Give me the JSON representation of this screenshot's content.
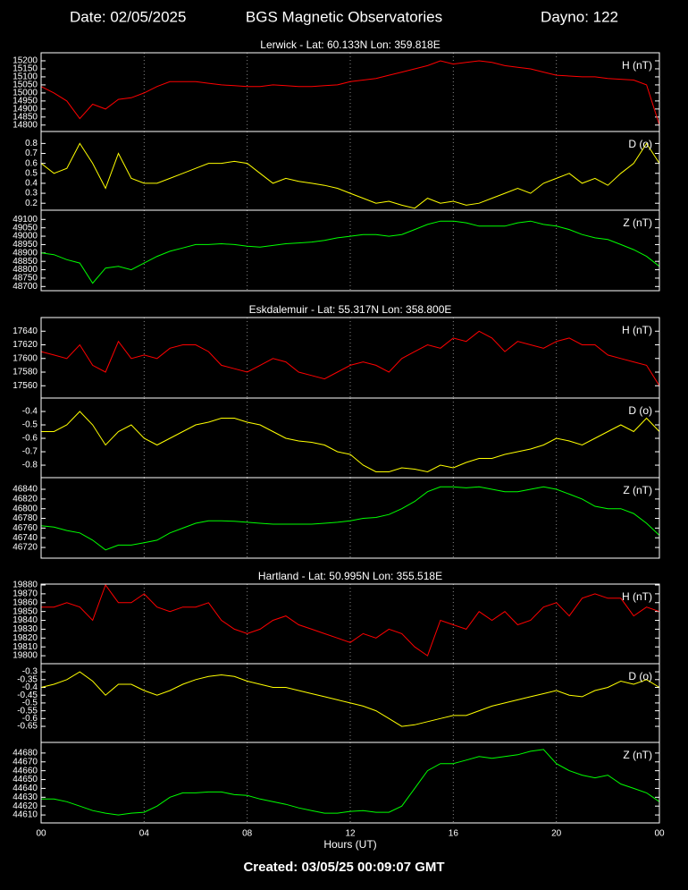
{
  "header": {
    "date": "Date: 02/05/2025",
    "title": "BGS Magnetic Observatories",
    "dayno": "Dayno: 122"
  },
  "footer": "Created: 03/05/25 00:09:07 GMT",
  "x_axis": {
    "label": "Hours (UT)",
    "xlim": [
      0,
      24
    ],
    "xticks": [
      {
        "value": 0,
        "label": "00"
      },
      {
        "value": 4,
        "label": "04"
      },
      {
        "value": 8,
        "label": "08"
      },
      12,
      16,
      20,
      {
        "value": 24,
        "label": "00"
      }
    ]
  },
  "chart_data": [
    {
      "type": "line",
      "title": "Lerwick - Lat: 60.133N Lon: 359.818E",
      "x": [
        0,
        0.5,
        1,
        1.5,
        2,
        2.5,
        3,
        3.5,
        4,
        4.5,
        5,
        5.5,
        6,
        6.5,
        7,
        7.5,
        8,
        8.5,
        9,
        9.5,
        10,
        10.5,
        11,
        11.5,
        12,
        12.5,
        13,
        13.5,
        14,
        14.5,
        15,
        15.5,
        16,
        16.5,
        17,
        17.5,
        18,
        18.5,
        19,
        19.5,
        20,
        20.5,
        21,
        21.5,
        22,
        22.5,
        23,
        23.5,
        24
      ],
      "series": [
        {
          "name": "H (nT)",
          "color": "#ff0000",
          "values": [
            15040,
            15000,
            14950,
            14840,
            14930,
            14900,
            14960,
            14970,
            15000,
            15040,
            15070,
            15070,
            15070,
            15060,
            15050,
            15045,
            15040,
            15040,
            15050,
            15045,
            15040,
            15040,
            15045,
            15050,
            15070,
            15080,
            15090,
            15110,
            15130,
            15150,
            15170,
            15200,
            15180,
            15190,
            15200,
            15190,
            15170,
            15160,
            15150,
            15130,
            15110,
            15105,
            15100,
            15100,
            15090,
            15085,
            15080,
            15050,
            14800
          ]
        }
      ],
      "ylim": [
        14760,
        15250
      ],
      "yticks": [
        14800,
        14850,
        14900,
        14950,
        15000,
        15050,
        15100,
        15150,
        15200
      ]
    },
    {
      "type": "line",
      "x": [
        0,
        0.5,
        1,
        1.5,
        2,
        2.5,
        3,
        3.5,
        4,
        4.5,
        5,
        5.5,
        6,
        6.5,
        7,
        7.5,
        8,
        8.5,
        9,
        9.5,
        10,
        10.5,
        11,
        11.5,
        12,
        12.5,
        13,
        13.5,
        14,
        14.5,
        15,
        15.5,
        16,
        16.5,
        17,
        17.5,
        18,
        18.5,
        19,
        19.5,
        20,
        20.5,
        21,
        21.5,
        22,
        22.5,
        23,
        23.5,
        24
      ],
      "series": [
        {
          "name": "D (o)",
          "color": "#ffff00",
          "values": [
            0.6,
            0.5,
            0.55,
            0.8,
            0.6,
            0.35,
            0.7,
            0.45,
            0.4,
            0.4,
            0.45,
            0.5,
            0.55,
            0.6,
            0.6,
            0.62,
            0.6,
            0.5,
            0.4,
            0.45,
            0.42,
            0.4,
            0.38,
            0.35,
            0.3,
            0.25,
            0.2,
            0.22,
            0.18,
            0.15,
            0.25,
            0.2,
            0.22,
            0.18,
            0.2,
            0.25,
            0.3,
            0.35,
            0.3,
            0.4,
            0.45,
            0.5,
            0.4,
            0.45,
            0.38,
            0.5,
            0.6,
            0.8,
            0.6
          ]
        }
      ],
      "ylim": [
        0.13,
        0.92
      ],
      "yticks": [
        0.2,
        0.3,
        0.4,
        0.5,
        0.6,
        0.7,
        0.8
      ]
    },
    {
      "type": "line",
      "x": [
        0,
        0.5,
        1,
        1.5,
        2,
        2.5,
        3,
        3.5,
        4,
        4.5,
        5,
        5.5,
        6,
        6.5,
        7,
        7.5,
        8,
        8.5,
        9,
        9.5,
        10,
        10.5,
        11,
        11.5,
        12,
        12.5,
        13,
        13.5,
        14,
        14.5,
        15,
        15.5,
        16,
        16.5,
        17,
        17.5,
        18,
        18.5,
        19,
        19.5,
        20,
        20.5,
        21,
        21.5,
        22,
        22.5,
        23,
        23.5,
        24
      ],
      "series": [
        {
          "name": "Z (nT)",
          "color": "#00ff00",
          "values": [
            48900,
            48890,
            48860,
            48840,
            48720,
            48810,
            48820,
            48800,
            48840,
            48880,
            48910,
            48930,
            48950,
            48950,
            48955,
            48950,
            48940,
            48935,
            48945,
            48955,
            48960,
            48965,
            48975,
            48990,
            49000,
            49010,
            49010,
            49000,
            49010,
            49040,
            49070,
            49090,
            49090,
            49080,
            49060,
            49060,
            49060,
            49080,
            49090,
            49070,
            49060,
            49040,
            49010,
            48990,
            48980,
            48950,
            48920,
            48880,
            48820
          ]
        }
      ],
      "ylim": [
        48675,
        49155
      ],
      "yticks": [
        48700,
        48750,
        48800,
        48850,
        48900,
        48950,
        49000,
        49050,
        49100
      ]
    },
    {
      "type": "line",
      "title": "Eskdalemuir - Lat: 55.317N Lon: 358.800E",
      "x": [
        0,
        0.5,
        1,
        1.5,
        2,
        2.5,
        3,
        3.5,
        4,
        4.5,
        5,
        5.5,
        6,
        6.5,
        7,
        7.5,
        8,
        8.5,
        9,
        9.5,
        10,
        10.5,
        11,
        11.5,
        12,
        12.5,
        13,
        13.5,
        14,
        14.5,
        15,
        15.5,
        16,
        16.5,
        17,
        17.5,
        18,
        18.5,
        19,
        19.5,
        20,
        20.5,
        21,
        21.5,
        22,
        22.5,
        23,
        23.5,
        24
      ],
      "series": [
        {
          "name": "H (nT)",
          "color": "#ff0000",
          "values": [
            17610,
            17605,
            17600,
            17620,
            17590,
            17580,
            17625,
            17600,
            17605,
            17600,
            17615,
            17620,
            17620,
            17610,
            17590,
            17585,
            17580,
            17590,
            17600,
            17595,
            17580,
            17575,
            17570,
            17580,
            17590,
            17595,
            17590,
            17580,
            17600,
            17610,
            17620,
            17615,
            17630,
            17625,
            17640,
            17630,
            17610,
            17625,
            17620,
            17615,
            17625,
            17630,
            17620,
            17620,
            17605,
            17600,
            17595,
            17590,
            17560
          ]
        }
      ],
      "ylim": [
        17542,
        17660
      ],
      "yticks": [
        17560,
        17580,
        17600,
        17620,
        17640
      ]
    },
    {
      "type": "line",
      "x": [
        0,
        0.5,
        1,
        1.5,
        2,
        2.5,
        3,
        3.5,
        4,
        4.5,
        5,
        5.5,
        6,
        6.5,
        7,
        7.5,
        8,
        8.5,
        9,
        9.5,
        10,
        10.5,
        11,
        11.5,
        12,
        12.5,
        13,
        13.5,
        14,
        14.5,
        15,
        15.5,
        16,
        16.5,
        17,
        17.5,
        18,
        18.5,
        19,
        19.5,
        20,
        20.5,
        21,
        21.5,
        22,
        22.5,
        23,
        23.5,
        24
      ],
      "series": [
        {
          "name": "D (o)",
          "color": "#ffff00",
          "values": [
            -0.55,
            -0.55,
            -0.5,
            -0.4,
            -0.5,
            -0.65,
            -0.55,
            -0.5,
            -0.6,
            -0.65,
            -0.6,
            -0.55,
            -0.5,
            -0.48,
            -0.45,
            -0.45,
            -0.48,
            -0.5,
            -0.55,
            -0.6,
            -0.62,
            -0.63,
            -0.65,
            -0.7,
            -0.72,
            -0.8,
            -0.85,
            -0.85,
            -0.82,
            -0.83,
            -0.85,
            -0.8,
            -0.82,
            -0.78,
            -0.75,
            -0.75,
            -0.72,
            -0.7,
            -0.68,
            -0.65,
            -0.6,
            -0.62,
            -0.65,
            -0.6,
            -0.55,
            -0.5,
            -0.55,
            -0.45,
            -0.55
          ]
        }
      ],
      "ylim": [
        -0.893,
        -0.3
      ],
      "yticks": [
        -0.4,
        -0.5,
        -0.6,
        -0.7,
        -0.8
      ]
    },
    {
      "type": "line",
      "x": [
        0,
        0.5,
        1,
        1.5,
        2,
        2.5,
        3,
        3.5,
        4,
        4.5,
        5,
        5.5,
        6,
        6.5,
        7,
        7.5,
        8,
        8.5,
        9,
        9.5,
        10,
        10.5,
        11,
        11.5,
        12,
        12.5,
        13,
        13.5,
        14,
        14.5,
        15,
        15.5,
        16,
        16.5,
        17,
        17.5,
        18,
        18.5,
        19,
        19.5,
        20,
        20.5,
        21,
        21.5,
        22,
        22.5,
        23,
        23.5,
        24
      ],
      "series": [
        {
          "name": "Z (nT)",
          "color": "#00ff00",
          "values": [
            46765,
            46762,
            46755,
            46750,
            46735,
            46715,
            46725,
            46725,
            46730,
            46735,
            46750,
            46760,
            46770,
            46775,
            46775,
            46774,
            46772,
            46770,
            46768,
            46768,
            46768,
            46768,
            46770,
            46772,
            46775,
            46780,
            46782,
            46788,
            46800,
            46815,
            46835,
            46845,
            46845,
            46843,
            46845,
            46840,
            46835,
            46835,
            46840,
            46845,
            46840,
            46830,
            46820,
            46805,
            46800,
            46800,
            46790,
            46770,
            46745
          ]
        }
      ],
      "ylim": [
        46698,
        46864
      ],
      "yticks": [
        46720,
        46740,
        46760,
        46780,
        46800,
        46820,
        46840
      ]
    },
    {
      "type": "line",
      "title": "Hartland - Lat: 50.995N Lon: 355.518E",
      "x": [
        0,
        0.5,
        1,
        1.5,
        2,
        2.5,
        3,
        3.5,
        4,
        4.5,
        5,
        5.5,
        6,
        6.5,
        7,
        7.5,
        8,
        8.5,
        9,
        9.5,
        10,
        10.5,
        11,
        11.5,
        12,
        12.5,
        13,
        13.5,
        14,
        14.5,
        15,
        15.5,
        16,
        16.5,
        17,
        17.5,
        18,
        18.5,
        19,
        19.5,
        20,
        20.5,
        21,
        21.5,
        22,
        22.5,
        23,
        23.5,
        24
      ],
      "series": [
        {
          "name": "H (nT)",
          "color": "#ff0000",
          "values": [
            19855,
            19855,
            19860,
            19855,
            19840,
            19880,
            19860,
            19860,
            19870,
            19855,
            19850,
            19855,
            19855,
            19860,
            19840,
            19830,
            19825,
            19830,
            19840,
            19845,
            19835,
            19830,
            19825,
            19820,
            19815,
            19825,
            19820,
            19830,
            19825,
            19810,
            19800,
            19840,
            19835,
            19830,
            19850,
            19840,
            19850,
            19835,
            19840,
            19855,
            19860,
            19845,
            19865,
            19870,
            19865,
            19865,
            19845,
            19855,
            19850
          ]
        }
      ],
      "ylim": [
        19791,
        19881
      ],
      "yticks": [
        19800,
        19810,
        19820,
        19830,
        19840,
        19850,
        19860,
        19870,
        19880
      ]
    },
    {
      "type": "line",
      "x": [
        0,
        0.5,
        1,
        1.5,
        2,
        2.5,
        3,
        3.5,
        4,
        4.5,
        5,
        5.5,
        6,
        6.5,
        7,
        7.5,
        8,
        8.5,
        9,
        9.5,
        10,
        10.5,
        11,
        11.5,
        12,
        12.5,
        13,
        13.5,
        14,
        14.5,
        15,
        15.5,
        16,
        16.5,
        17,
        17.5,
        18,
        18.5,
        19,
        19.5,
        20,
        20.5,
        21,
        21.5,
        22,
        22.5,
        23,
        23.5,
        24
      ],
      "series": [
        {
          "name": "D (o)",
          "color": "#ffff00",
          "values": [
            -0.4,
            -0.38,
            -0.35,
            -0.3,
            -0.36,
            -0.45,
            -0.38,
            -0.38,
            -0.42,
            -0.45,
            -0.42,
            -0.38,
            -0.35,
            -0.33,
            -0.32,
            -0.33,
            -0.36,
            -0.38,
            -0.4,
            -0.4,
            -0.42,
            -0.44,
            -0.46,
            -0.48,
            -0.5,
            -0.52,
            -0.55,
            -0.6,
            -0.65,
            -0.64,
            -0.62,
            -0.6,
            -0.58,
            -0.58,
            -0.55,
            -0.52,
            -0.5,
            -0.48,
            -0.46,
            -0.44,
            -0.42,
            -0.45,
            -0.46,
            -0.42,
            -0.4,
            -0.36,
            -0.38,
            -0.35,
            -0.4
          ]
        }
      ],
      "ylim": [
        -0.753,
        -0.248
      ],
      "yticks": [
        -0.3,
        -0.35,
        -0.4,
        -0.45,
        -0.5,
        -0.55,
        -0.6,
        -0.65
      ]
    },
    {
      "type": "line",
      "x": [
        0,
        0.5,
        1,
        1.5,
        2,
        2.5,
        3,
        3.5,
        4,
        4.5,
        5,
        5.5,
        6,
        6.5,
        7,
        7.5,
        8,
        8.5,
        9,
        9.5,
        10,
        10.5,
        11,
        11.5,
        12,
        12.5,
        13,
        13.5,
        14,
        14.5,
        15,
        15.5,
        16,
        16.5,
        17,
        17.5,
        18,
        18.5,
        19,
        19.5,
        20,
        20.5,
        21,
        21.5,
        22,
        22.5,
        23,
        23.5,
        24
      ],
      "series": [
        {
          "name": "Z (nT)",
          "color": "#00ff00",
          "values": [
            44628,
            44628,
            44625,
            44620,
            44615,
            44612,
            44610,
            44612,
            44613,
            44620,
            44630,
            44635,
            44635,
            44636,
            44636,
            44633,
            44632,
            44628,
            44625,
            44622,
            44618,
            44615,
            44612,
            44612,
            44614,
            44615,
            44613,
            44613,
            44620,
            44640,
            44660,
            44668,
            44668,
            44672,
            44676,
            44674,
            44676,
            44678,
            44682,
            44684,
            44668,
            44660,
            44655,
            44652,
            44655,
            44645,
            44640,
            44635,
            44625
          ]
        }
      ],
      "ylim": [
        44601,
        44692
      ],
      "yticks": [
        44610,
        44620,
        44630,
        44640,
        44650,
        44660,
        44670,
        44680
      ]
    }
  ]
}
